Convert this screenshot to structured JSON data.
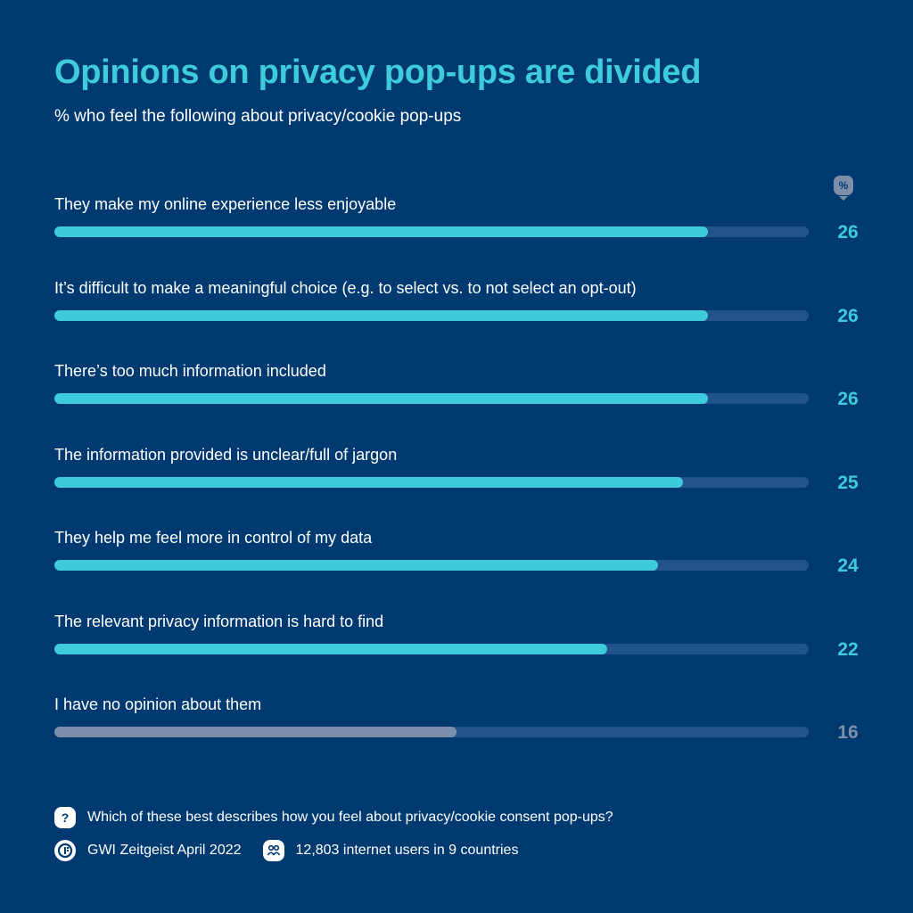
{
  "header": {
    "title": "Opinions on privacy pop-ups are divided",
    "subtitle": "% who feel the following about privacy/cookie pop-ups",
    "unit_marker": "%"
  },
  "colors": {
    "background": "#003a70",
    "accent": "#3ecbdc",
    "track": "#21548a",
    "neutral": "#7d8faa"
  },
  "chart_data": {
    "type": "bar",
    "orientation": "horizontal",
    "title": "Opinions on privacy pop-ups are divided",
    "subtitle": "% who feel the following about privacy/cookie pop-ups",
    "xlabel": "",
    "ylabel": "",
    "unit": "%",
    "xlim": [
      0,
      30
    ],
    "grid": false,
    "categories": [
      "They make my online experience less enjoyable",
      "It’s difficult to make a meaningful choice (e.g. to select vs. to not select an opt-out)",
      "There’s too much information included",
      "The information provided is unclear/full of jargon",
      "They help me feel more in control of my data",
      "The relevant privacy information is hard to find",
      "I have no opinion about them"
    ],
    "values": [
      26,
      26,
      26,
      25,
      24,
      22,
      16
    ],
    "bar_colors": [
      "#3ecbdc",
      "#3ecbdc",
      "#3ecbdc",
      "#3ecbdc",
      "#3ecbdc",
      "#3ecbdc",
      "#7d8faa"
    ]
  },
  "footer": {
    "question": "Which of these best describes how you feel about privacy/cookie consent pop-ups?",
    "question_icon": "question-icon",
    "source": "GWI Zeitgeist April 2022",
    "source_icon": "gwi-logo-icon",
    "sample": "12,803 internet users in 9 countries",
    "sample_icon": "people-icon"
  }
}
